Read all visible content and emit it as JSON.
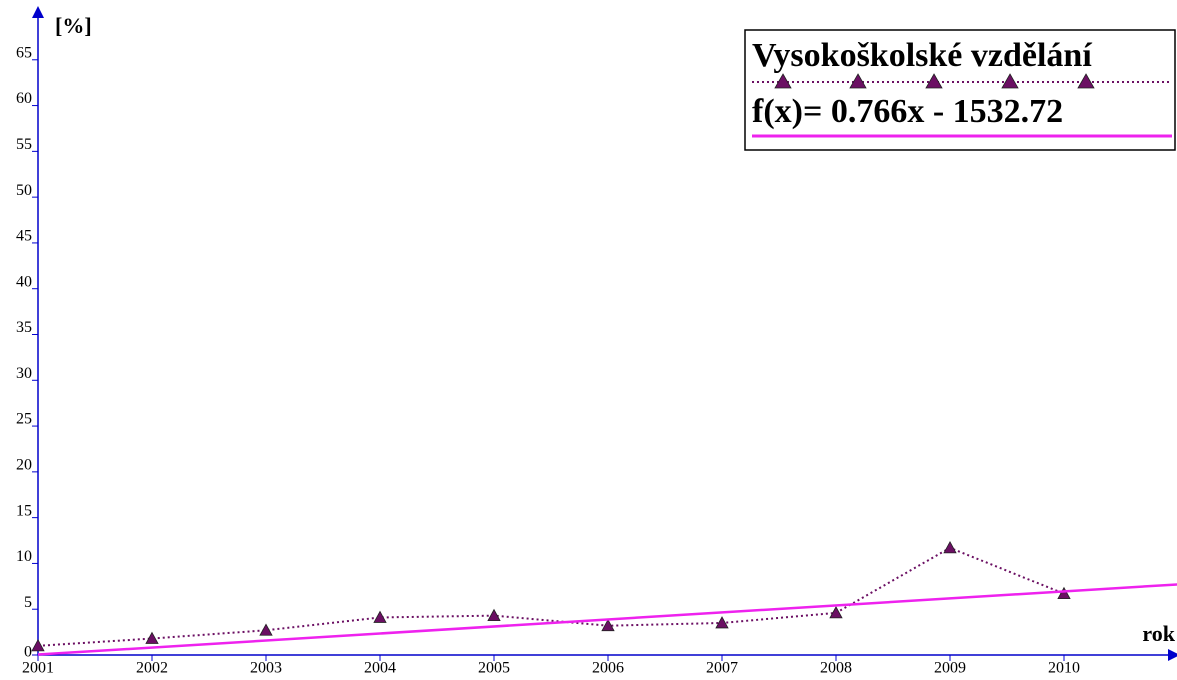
{
  "chart_data": {
    "type": "line",
    "y_label": "[%]",
    "x_label": "rok",
    "x": [
      2001,
      2002,
      2003,
      2004,
      2005,
      2006,
      2007,
      2008,
      2009,
      2010
    ],
    "series": [
      {
        "name": "Vysokoškolské vzdělání",
        "color": "#6b0f63",
        "values": [
          1.0,
          1.8,
          2.7,
          4.1,
          4.3,
          3.2,
          3.5,
          4.6,
          11.7,
          6.7
        ]
      },
      {
        "name": "f(x)= 0.766x - 1532.72",
        "color": "#ee22ee",
        "x": [
          2001,
          2011
        ],
        "values": [
          0.05,
          7.71
        ]
      }
    ],
    "xlim": [
      2001,
      2011
    ],
    "ylim": [
      0,
      70
    ],
    "xticks": [
      2001,
      2002,
      2003,
      2004,
      2005,
      2006,
      2007,
      2008,
      2009,
      2010
    ],
    "yticks": [
      0,
      5,
      10,
      15,
      20,
      25,
      30,
      35,
      40,
      45,
      50,
      55,
      60,
      65
    ],
    "legend": "top-right"
  }
}
